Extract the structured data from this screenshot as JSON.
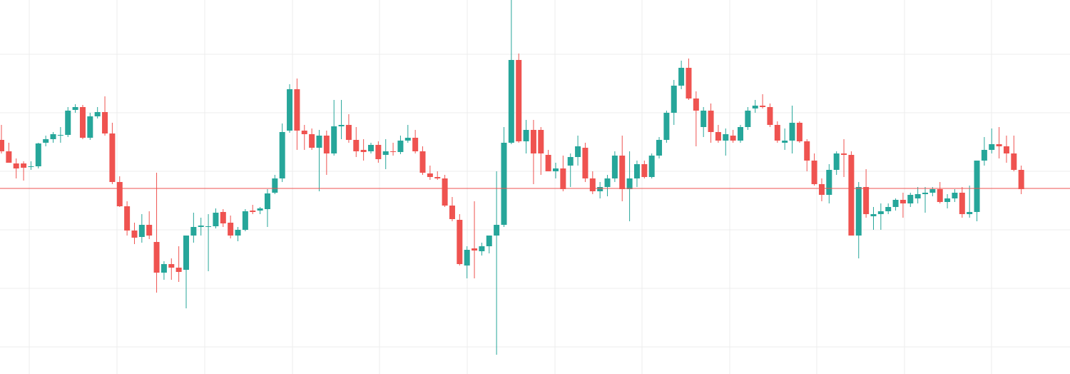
{
  "chart_data": {
    "type": "candlestick",
    "open": [
      328,
      312,
      295,
      295,
      290,
      291,
      324,
      329,
      334,
      335,
      370,
      374,
      331,
      361,
      367,
      337,
      269,
      235,
      201,
      192,
      209,
      185,
      142,
      154,
      149,
      146,
      194,
      206,
      206,
      207,
      227,
      212,
      194,
      202,
      229,
      229,
      231,
      254,
      274,
      341,
      399,
      341,
      336,
      317,
      334,
      309,
      347,
      349,
      328,
      314,
      312,
      321,
      307,
      312,
      311,
      327,
      331,
      312,
      281,
      276,
      274,
      236,
      216,
      152,
      176,
      172,
      179,
      194,
      209,
      324,
      440,
      326,
      342,
      342,
      307,
      284,
      288,
      292,
      304,
      317,
      274,
      256,
      262,
      274,
      306,
      259,
      274,
      294,
      276,
      306,
      328,
      366,
      404,
      429,
      386,
      346,
      369,
      339,
      327,
      334,
      327,
      346,
      372,
      376,
      374,
      349,
      324,
      327,
      352,
      326,
      299,
      266,
      251,
      286,
      309,
      307,
      194,
      262,
      221,
      224,
      228,
      234,
      244,
      239,
      246,
      252,
      254,
      259,
      241,
      246,
      254,
      224,
      227,
      299,
      314,
      322,
      319,
      309,
      286
    ],
    "high": [
      349,
      324,
      302,
      298,
      298,
      324,
      334,
      339,
      346,
      374,
      378,
      377,
      366,
      374,
      389,
      352,
      277,
      242,
      212,
      224,
      228,
      282,
      158,
      162,
      179,
      194,
      226,
      219,
      224,
      232,
      231,
      222,
      206,
      231,
      237,
      234,
      259,
      279,
      351,
      406,
      414,
      349,
      344,
      342,
      341,
      384,
      384,
      364,
      346,
      329,
      324,
      326,
      329,
      324,
      334,
      349,
      342,
      319,
      292,
      284,
      279,
      248,
      224,
      179,
      242,
      184,
      194,
      284,
      346,
      524,
      449,
      356,
      356,
      346,
      314,
      296,
      306,
      309,
      334,
      324,
      284,
      269,
      279,
      312,
      334,
      312,
      299,
      299,
      309,
      332,
      369,
      412,
      439,
      442,
      396,
      374,
      379,
      349,
      344,
      342,
      349,
      374,
      384,
      392,
      379,
      354,
      344,
      376,
      354,
      329,
      309,
      274,
      294,
      312,
      329,
      312,
      269,
      287,
      234,
      239,
      239,
      246,
      254,
      254,
      262,
      262,
      262,
      269,
      252,
      259,
      262,
      264,
      299,
      332,
      344,
      346,
      334,
      334,
      292
    ],
    "low": [
      309,
      299,
      274,
      271,
      286,
      288,
      319,
      324,
      324,
      332,
      366,
      329,
      328,
      358,
      334,
      266,
      234,
      194,
      182,
      184,
      189,
      114,
      132,
      132,
      129,
      92,
      184,
      194,
      144,
      204,
      206,
      190,
      186,
      200,
      224,
      224,
      206,
      252,
      269,
      338,
      314,
      314,
      314,
      256,
      279,
      306,
      329,
      324,
      304,
      299,
      309,
      296,
      287,
      306,
      308,
      324,
      309,
      279,
      272,
      272,
      234,
      214,
      152,
      134,
      134,
      166,
      169,
      27,
      206,
      322,
      324,
      309,
      266,
      279,
      284,
      274,
      256,
      262,
      292,
      269,
      252,
      246,
      249,
      269,
      242,
      214,
      262,
      274,
      274,
      302,
      324,
      349,
      399,
      384,
      319,
      332,
      324,
      324,
      306,
      324,
      324,
      342,
      366,
      372,
      346,
      324,
      314,
      309,
      324,
      284,
      264,
      242,
      239,
      279,
      276,
      194,
      162,
      219,
      202,
      202,
      224,
      229,
      219,
      234,
      239,
      226,
      249,
      239,
      232,
      241,
      219,
      219,
      214,
      292,
      309,
      302,
      296,
      284,
      252
    ],
    "close": [
      312,
      296,
      288,
      289,
      291,
      323,
      329,
      336,
      335,
      369,
      374,
      331,
      361,
      367,
      337,
      269,
      235,
      201,
      191,
      209,
      194,
      142,
      154,
      149,
      143,
      194,
      206,
      208,
      207,
      226,
      211,
      194,
      202,
      228,
      227,
      232,
      253,
      274,
      339,
      399,
      341,
      336,
      317,
      334,
      309,
      347,
      349,
      328,
      312,
      311,
      321,
      301,
      312,
      311,
      327,
      331,
      312,
      282,
      276,
      274,
      236,
      217,
      154,
      174,
      173,
      179,
      194,
      209,
      324,
      440,
      326,
      342,
      309,
      309,
      284,
      288,
      259,
      304,
      319,
      274,
      256,
      262,
      274,
      306,
      259,
      274,
      294,
      276,
      306,
      328,
      366,
      404,
      429,
      386,
      369,
      369,
      339,
      327,
      336,
      327,
      346,
      369,
      376,
      374,
      349,
      327,
      327,
      352,
      326,
      299,
      266,
      251,
      286,
      309,
      307,
      194,
      262,
      224,
      224,
      228,
      234,
      244,
      239,
      251,
      252,
      254,
      259,
      241,
      246,
      254,
      224,
      227,
      299,
      314,
      322,
      319,
      309,
      286,
      259
    ],
    "up_color": "#26a69a",
    "down_color": "#ef5350",
    "ylim": [
      0,
      524
    ],
    "yticks": [
      38,
      120,
      202,
      284,
      366,
      448
    ],
    "grid": true,
    "price_line": 260,
    "price_line_color": "#ef5350"
  }
}
